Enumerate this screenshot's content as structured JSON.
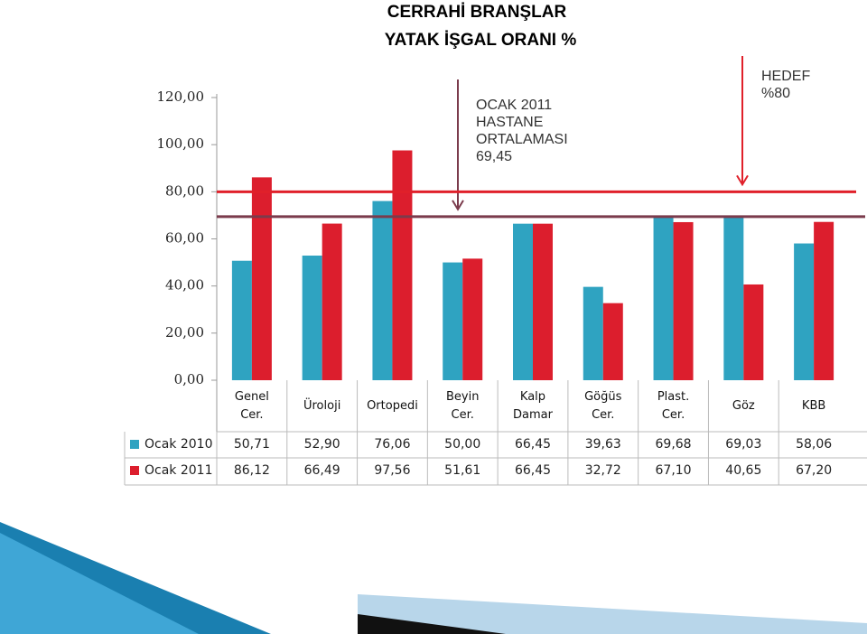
{
  "chart_data": {
    "type": "bar",
    "title": "CERRAHİ BRANŞLAR",
    "subtitle": "YATAK İŞGAL ORANI %",
    "categories": [
      "Genel Cer.",
      "Üroloji",
      "Ortopedi",
      "Beyin Cer.",
      "Kalp Damar",
      "Göğüs Cer.",
      "Plast. Cer.",
      "Göz",
      "KBB"
    ],
    "series": [
      {
        "name": "Ocak 2010",
        "color": "#2fa3c1",
        "values": [
          50.71,
          52.9,
          76.06,
          50.0,
          66.45,
          39.63,
          69.68,
          69.03,
          58.06
        ],
        "value_labels": [
          "50,71",
          "52,90",
          "76,06",
          "50,00",
          "66,45",
          "39,63",
          "69,68",
          "69,03",
          "58,06"
        ]
      },
      {
        "name": "Ocak 2011",
        "color": "#dc1e2d",
        "values": [
          86.12,
          66.49,
          97.56,
          51.61,
          66.45,
          32.72,
          67.1,
          40.65,
          67.2
        ],
        "value_labels": [
          "86,12",
          "66,49",
          "97,56",
          "51,61",
          "66,45",
          "32,72",
          "67,10",
          "40,65",
          "67,20"
        ]
      }
    ],
    "ylim": [
      0,
      120
    ],
    "yticks": [
      {
        "value": 0,
        "label": "0,00"
      },
      {
        "value": 20,
        "label": "20,00"
      },
      {
        "value": 40,
        "label": "40,00"
      },
      {
        "value": 60,
        "label": "60,00"
      },
      {
        "value": 80,
        "label": "80,00"
      },
      {
        "value": 100,
        "label": "100,00"
      },
      {
        "value": 120,
        "label": "120,00"
      }
    ],
    "reference_lines": [
      {
        "value": 69.45,
        "color": "#7b3b4c",
        "text": [
          "OCAK 2011",
          "HASTANE",
          "ORTALAMASI",
          "69,45"
        ]
      },
      {
        "value": 80,
        "color": "#e0202a",
        "text": [
          "HEDEF",
          "%80"
        ]
      }
    ]
  }
}
